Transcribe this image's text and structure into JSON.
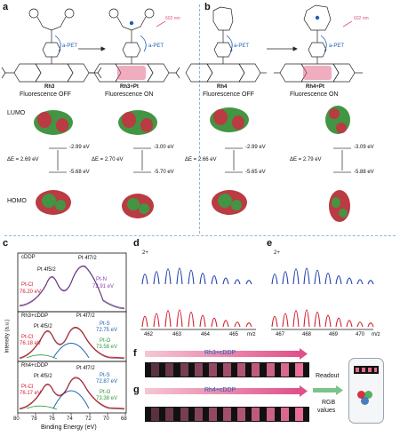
{
  "panel_a": {
    "label": "a",
    "mol_left": "Rh3",
    "mol_right": "Rh3+Pt",
    "pet_left": "a-PET",
    "pet_right": "a-PET",
    "wavelength": "602 nm",
    "fluor_left": "Fluorescence OFF",
    "fluor_right": "Fluorescence ON",
    "lumo": "LUMO",
    "homo": "HOMO",
    "gap_left": "ΔE = 2.69 eV",
    "gap_right": "ΔE = 2.70 eV",
    "lumo_left": "-2.99 eV",
    "homo_left": "-5.68 eV",
    "lumo_right": "-3.00 eV",
    "homo_right": "-5.70 eV"
  },
  "panel_b": {
    "label": "b",
    "mol_left": "Rh4",
    "mol_right": "Rh4+Pt",
    "pet_left": "a-PET",
    "pet_right": "a-PET",
    "wavelength": "602 nm",
    "fluor_left": "Fluorescence OFF",
    "fluor_right": "Fluorescence ON",
    "gap_left": "ΔE = 2.66 eV",
    "gap_right": "ΔE = 2.79 eV",
    "lumo_left": "-2.99 eV",
    "homo_left": "-5.65 eV",
    "lumo_right": "-3.09 eV",
    "homo_right": "-5.88 eV"
  },
  "panel_c": {
    "label": "c",
    "ylabel": "Intensity (a.u.)",
    "xlabel": "Binding Energy (eV)",
    "xticks": [
      "80",
      "78",
      "76",
      "74",
      "72",
      "70",
      "68"
    ],
    "sub1": {
      "title": "cDDP",
      "pk1": "Pt 4f5/2",
      "pk2": "Pt 4f7/2",
      "a1": "Pt-Cl",
      "a1v": "76.20 eV",
      "a2": "Pt-N",
      "a2v": "72.91 eV"
    },
    "sub2": {
      "title": "Rh3+cDDP",
      "pk1": "Pt 4f5/2",
      "pk2": "Pt 4f7/2",
      "a1": "Pt-Cl",
      "a1v": "76.18 eV",
      "a2": "Pt-S",
      "a2v": "72.75 eV",
      "a3": "Pt-O",
      "a3v": "73.58 eV"
    },
    "sub3": {
      "title": "Rh4+cDDP",
      "pk1": "Pt 4f5/2",
      "pk2": "Pt 4f7/2",
      "a1": "Pt-Cl",
      "a1v": "76.17 eV",
      "a2": "Pt-S",
      "a2v": "72.87 eV",
      "a3": "Pt-O",
      "a3v": "73.38 eV"
    }
  },
  "panel_d": {
    "label": "d",
    "charge": "2+",
    "xticks": [
      "462",
      "463",
      "464",
      "465"
    ],
    "xunit": "m/z"
  },
  "panel_e": {
    "label": "e",
    "charge": "2+",
    "xticks": [
      "467",
      "468",
      "469",
      "470"
    ],
    "xunit": "m/z"
  },
  "panel_f": {
    "label": "f",
    "arrow_text": "Rh3+cDDP"
  },
  "panel_g": {
    "label": "g",
    "arrow_text": "Rh4+cDDP"
  },
  "readout": {
    "line1": "Readout",
    "line2": "RGB",
    "line3": "values"
  },
  "colors": {
    "red": "#d11c2c",
    "blue": "#1d5fb4",
    "pink": "#e0508a",
    "green": "#2c9c3a",
    "purple": "#8a3fb0"
  }
}
